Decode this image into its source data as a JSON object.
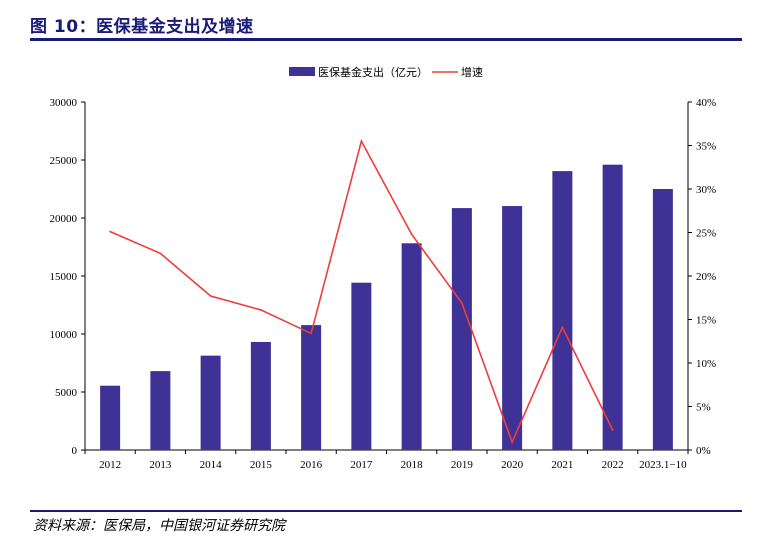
{
  "figure": {
    "title": "图 10：医保基金支出及增速",
    "source": "资料来源：医保局，中国银河证券研究院"
  },
  "chart_data": {
    "type": "bar+line",
    "categories": [
      "2012",
      "2013",
      "2014",
      "2015",
      "2016",
      "2017",
      "2018",
      "2019",
      "2020",
      "2021",
      "2022",
      "2023.1−10"
    ],
    "series": [
      {
        "name": "医保基金支出（亿元）",
        "type": "bar",
        "axis": "left",
        "color": "#3f3297",
        "values": [
          5544,
          6801,
          8134,
          9312,
          10767,
          14422,
          17822,
          20854,
          21032,
          24043,
          24597,
          22500
        ]
      },
      {
        "name": "增速",
        "type": "line",
        "axis": "right",
        "color": "#f03c3c",
        "values": [
          25.1,
          22.6,
          17.7,
          16.1,
          13.4,
          35.5,
          24.8,
          16.9,
          0.9,
          14.1,
          2.3,
          null
        ]
      }
    ],
    "y_left": {
      "min": 0,
      "max": 30000,
      "ticks": [
        "0",
        "5000",
        "10000",
        "15000",
        "20000",
        "25000",
        "30000"
      ]
    },
    "y_right": {
      "min": 0,
      "max": 40,
      "ticks": [
        "0%",
        "5%",
        "10%",
        "15%",
        "20%",
        "25%",
        "30%",
        "35%",
        "40%"
      ]
    },
    "legend_position": "top-center",
    "grid": false
  }
}
